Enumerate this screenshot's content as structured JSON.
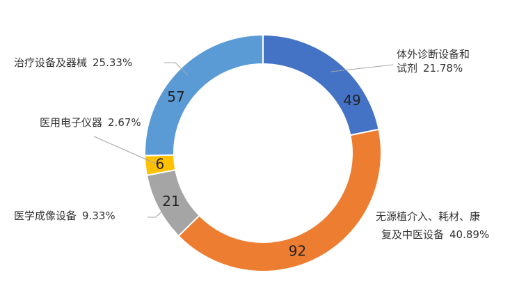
{
  "chart_data": {
    "type": "pie",
    "subtype": "donut",
    "title": "",
    "slices": [
      {
        "name_line1": "体外诊断设备和",
        "name_line2": "试剂",
        "value": 49,
        "percent": "21.78%",
        "color": "#4472C4"
      },
      {
        "name_line1": "无源植介入、耗材、康",
        "name_line2": "复及中医设备",
        "value": 92,
        "percent": "40.89%",
        "color": "#ED7D31"
      },
      {
        "name_line1": "医学成像设备",
        "name_line2": "",
        "value": 21,
        "percent": "9.33%",
        "color": "#A5A5A5"
      },
      {
        "name_line1": "医用电子仪器",
        "name_line2": "",
        "value": 6,
        "percent": "2.67%",
        "color": "#FFC000"
      },
      {
        "name_line1": "治疗设备及器械",
        "name_line2": "",
        "value": 57,
        "percent": "25.33%",
        "color": "#5B9BD5"
      }
    ],
    "start_angle": "12 o'clock",
    "direction": "clockwise",
    "legend": "none"
  }
}
